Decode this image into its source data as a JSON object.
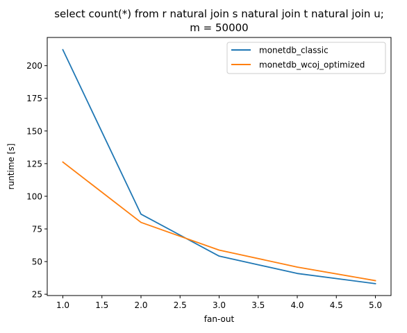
{
  "chart_data": {
    "type": "line",
    "title": "select count(*) from r natural join s natural join t natural join u;",
    "subtitle": "m = 50000",
    "xlabel": "fan-out",
    "ylabel": "runtime [s]",
    "x": [
      1.0,
      2.0,
      3.0,
      4.0,
      5.0
    ],
    "xlim": [
      0.8,
      5.2
    ],
    "ylim": [
      24,
      221.6
    ],
    "xticks": [
      1.0,
      1.5,
      2.0,
      2.5,
      3.0,
      3.5,
      4.0,
      4.5,
      5.0
    ],
    "xtick_labels": [
      "1.0",
      "1.5",
      "2.0",
      "2.5",
      "3.0",
      "3.5",
      "4.0",
      "4.5",
      "5.0"
    ],
    "yticks": [
      25,
      50,
      75,
      100,
      125,
      150,
      175,
      200
    ],
    "ytick_labels": [
      "25",
      "50",
      "75",
      "100",
      "125",
      "150",
      "175",
      "200"
    ],
    "grid": false,
    "legend_position": "top-right",
    "series": [
      {
        "name": "monetdb_classic",
        "color": "#1f77b4",
        "values": [
          212.2,
          86.3,
          54.2,
          40.9,
          33.1
        ]
      },
      {
        "name": "monetdb_wcoj_optimized",
        "color": "#ff7f0e",
        "values": [
          126.2,
          80.0,
          58.8,
          45.8,
          35.4
        ]
      }
    ]
  }
}
